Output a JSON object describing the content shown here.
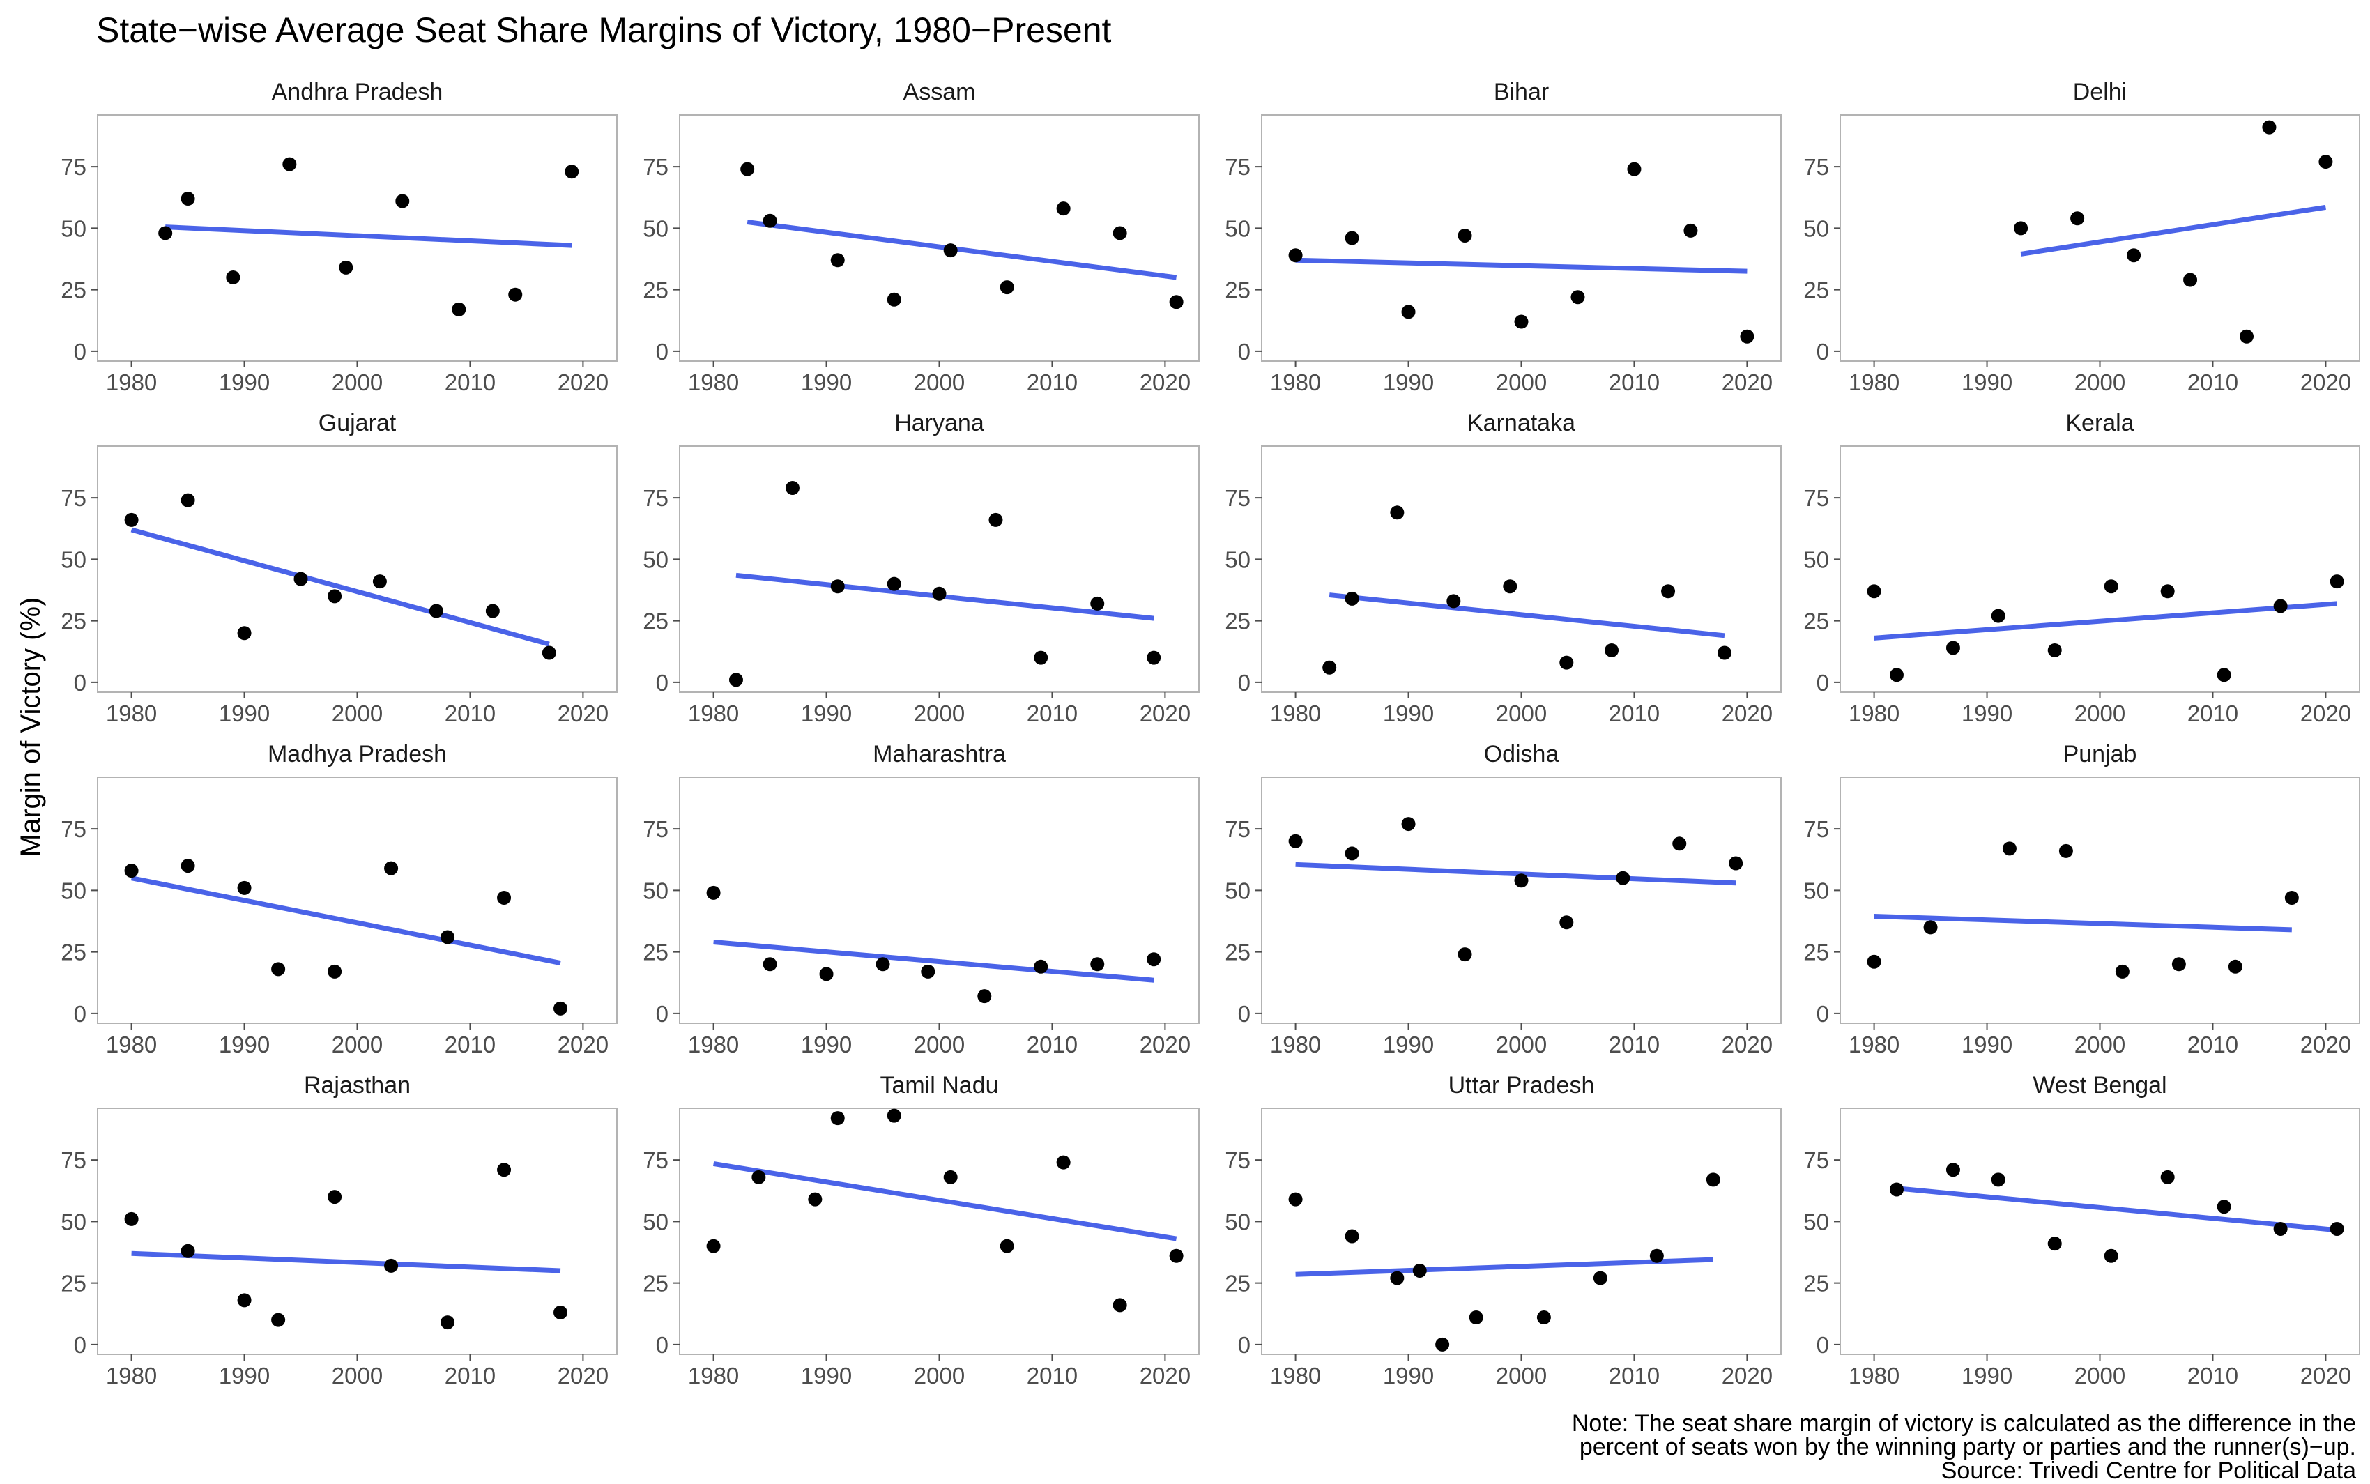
{
  "title": "State−wise Average Seat Share Margins of Victory, 1980−Present",
  "note_lines": [
    "Note: The seat share margin of victory is calculated as the difference in the",
    "percent of seats won by the winning party or parties and the runner(s)−up.",
    "Source: Trivedi Centre for Political Data"
  ],
  "chart_data": {
    "type": "scatter",
    "layout": "facet-grid 4x4",
    "xlabel": "",
    "ylabel": "Margin of Victory (%)",
    "xlim": [
      1977,
      2023
    ],
    "ylim": [
      -4,
      96
    ],
    "x_ticks": [
      1980,
      1990,
      2000,
      2010,
      2020
    ],
    "y_ticks": [
      0,
      25,
      50,
      75
    ],
    "grid": false,
    "colors": {
      "points": "#000000",
      "trend_line": "#4a63e8",
      "panel_border": "#b3b3b3",
      "tick_text": "#4d4d4d"
    },
    "panels": [
      {
        "name": "Andhra Pradesh",
        "points": [
          [
            1983,
            48
          ],
          [
            1985,
            62
          ],
          [
            1989,
            30
          ],
          [
            1994,
            76
          ],
          [
            1999,
            34
          ],
          [
            2004,
            61
          ],
          [
            2009,
            17
          ],
          [
            2014,
            23
          ],
          [
            2019,
            73
          ]
        ],
        "trend": [
          [
            1983,
            50.5
          ],
          [
            2019,
            43
          ]
        ]
      },
      {
        "name": "Assam",
        "points": [
          [
            1983,
            74
          ],
          [
            1985,
            53
          ],
          [
            1991,
            37
          ],
          [
            1996,
            21
          ],
          [
            2001,
            41
          ],
          [
            2006,
            26
          ],
          [
            2011,
            58
          ],
          [
            2016,
            48
          ],
          [
            2021,
            20
          ]
        ],
        "trend": [
          [
            1983,
            52.5
          ],
          [
            2021,
            30
          ]
        ]
      },
      {
        "name": "Bihar",
        "points": [
          [
            1980,
            39
          ],
          [
            1985,
            46
          ],
          [
            1990,
            16
          ],
          [
            1995,
            47
          ],
          [
            2000,
            12
          ],
          [
            2005,
            22
          ],
          [
            2010,
            74
          ],
          [
            2015,
            49
          ],
          [
            2020,
            6
          ]
        ],
        "trend": [
          [
            1980,
            37
          ],
          [
            2020,
            32.5
          ]
        ]
      },
      {
        "name": "Delhi",
        "points": [
          [
            1993,
            50
          ],
          [
            1998,
            54
          ],
          [
            2003,
            39
          ],
          [
            2008,
            29
          ],
          [
            2013,
            6
          ],
          [
            2015,
            91
          ],
          [
            2020,
            77
          ]
        ],
        "trend": [
          [
            1993,
            39.5
          ],
          [
            2020,
            58.5
          ]
        ]
      },
      {
        "name": "Gujarat",
        "points": [
          [
            1980,
            66
          ],
          [
            1985,
            74
          ],
          [
            1990,
            20
          ],
          [
            1995,
            42
          ],
          [
            1998,
            35
          ],
          [
            2002,
            41
          ],
          [
            2007,
            29
          ],
          [
            2012,
            29
          ],
          [
            2017,
            12
          ]
        ],
        "trend": [
          [
            1980,
            62
          ],
          [
            2017,
            15.5
          ]
        ]
      },
      {
        "name": "Haryana",
        "points": [
          [
            1982,
            1
          ],
          [
            1987,
            79
          ],
          [
            1991,
            39
          ],
          [
            1996,
            40
          ],
          [
            2000,
            36
          ],
          [
            2005,
            66
          ],
          [
            2009,
            10
          ],
          [
            2014,
            32
          ],
          [
            2019,
            10
          ]
        ],
        "trend": [
          [
            1982,
            43.5
          ],
          [
            2019,
            26
          ]
        ]
      },
      {
        "name": "Karnataka",
        "points": [
          [
            1983,
            6
          ],
          [
            1985,
            34
          ],
          [
            1989,
            69
          ],
          [
            1994,
            33
          ],
          [
            1999,
            39
          ],
          [
            2004,
            8
          ],
          [
            2008,
            13
          ],
          [
            2013,
            37
          ],
          [
            2018,
            12
          ]
        ],
        "trend": [
          [
            1983,
            35.5
          ],
          [
            2018,
            19
          ]
        ]
      },
      {
        "name": "Kerala",
        "points": [
          [
            1980,
            37
          ],
          [
            1982,
            3
          ],
          [
            1987,
            14
          ],
          [
            1991,
            27
          ],
          [
            1996,
            13
          ],
          [
            2001,
            39
          ],
          [
            2006,
            37
          ],
          [
            2011,
            3
          ],
          [
            2016,
            31
          ],
          [
            2021,
            41
          ]
        ],
        "trend": [
          [
            1980,
            18
          ],
          [
            2021,
            32
          ]
        ]
      },
      {
        "name": "Madhya Pradesh",
        "points": [
          [
            1980,
            58
          ],
          [
            1985,
            60
          ],
          [
            1990,
            51
          ],
          [
            1993,
            18
          ],
          [
            1998,
            17
          ],
          [
            2003,
            59
          ],
          [
            2008,
            31
          ],
          [
            2013,
            47
          ],
          [
            2018,
            2
          ]
        ],
        "trend": [
          [
            1980,
            55
          ],
          [
            2018,
            20.5
          ]
        ]
      },
      {
        "name": "Maharashtra",
        "points": [
          [
            1980,
            49
          ],
          [
            1985,
            20
          ],
          [
            1990,
            16
          ],
          [
            1995,
            20
          ],
          [
            1999,
            17
          ],
          [
            2004,
            7
          ],
          [
            2009,
            19
          ],
          [
            2014,
            20
          ],
          [
            2019,
            22
          ]
        ],
        "trend": [
          [
            1980,
            29
          ],
          [
            2019,
            13.5
          ]
        ]
      },
      {
        "name": "Odisha",
        "points": [
          [
            1980,
            70
          ],
          [
            1985,
            65
          ],
          [
            1990,
            77
          ],
          [
            1995,
            24
          ],
          [
            2000,
            54
          ],
          [
            2004,
            37
          ],
          [
            2009,
            55
          ],
          [
            2014,
            69
          ],
          [
            2019,
            61
          ]
        ],
        "trend": [
          [
            1980,
            60.5
          ],
          [
            2019,
            53
          ]
        ]
      },
      {
        "name": "Punjab",
        "points": [
          [
            1980,
            21
          ],
          [
            1985,
            35
          ],
          [
            1992,
            67
          ],
          [
            1997,
            66
          ],
          [
            2002,
            17
          ],
          [
            2007,
            20
          ],
          [
            2012,
            19
          ],
          [
            2017,
            47
          ]
        ],
        "trend": [
          [
            1980,
            39.5
          ],
          [
            2017,
            34
          ]
        ]
      },
      {
        "name": "Rajasthan",
        "points": [
          [
            1980,
            51
          ],
          [
            1985,
            38
          ],
          [
            1990,
            18
          ],
          [
            1993,
            10
          ],
          [
            1998,
            60
          ],
          [
            2003,
            32
          ],
          [
            2008,
            9
          ],
          [
            2013,
            71
          ],
          [
            2018,
            13
          ]
        ],
        "trend": [
          [
            1980,
            37
          ],
          [
            2018,
            30
          ]
        ]
      },
      {
        "name": "Tamil Nadu",
        "points": [
          [
            1980,
            40
          ],
          [
            1984,
            68
          ],
          [
            1989,
            59
          ],
          [
            1991,
            92
          ],
          [
            1996,
            93
          ],
          [
            2001,
            68
          ],
          [
            2006,
            40
          ],
          [
            2011,
            74
          ],
          [
            2016,
            16
          ],
          [
            2021,
            36
          ]
        ],
        "trend": [
          [
            1980,
            73.5
          ],
          [
            2021,
            43
          ]
        ]
      },
      {
        "name": "Uttar Pradesh",
        "points": [
          [
            1980,
            59
          ],
          [
            1985,
            44
          ],
          [
            1989,
            27
          ],
          [
            1991,
            30
          ],
          [
            1993,
            0
          ],
          [
            1996,
            11
          ],
          [
            2002,
            11
          ],
          [
            2007,
            27
          ],
          [
            2012,
            36
          ],
          [
            2017,
            67
          ]
        ],
        "trend": [
          [
            1980,
            28.5
          ],
          [
            2017,
            34.5
          ]
        ]
      },
      {
        "name": "West Bengal",
        "points": [
          [
            1982,
            63
          ],
          [
            1987,
            71
          ],
          [
            1991,
            67
          ],
          [
            1996,
            41
          ],
          [
            2001,
            36
          ],
          [
            2006,
            68
          ],
          [
            2011,
            56
          ],
          [
            2016,
            47
          ],
          [
            2021,
            47
          ]
        ],
        "trend": [
          [
            1982,
            63.5
          ],
          [
            2021,
            46.5
          ]
        ]
      }
    ]
  }
}
